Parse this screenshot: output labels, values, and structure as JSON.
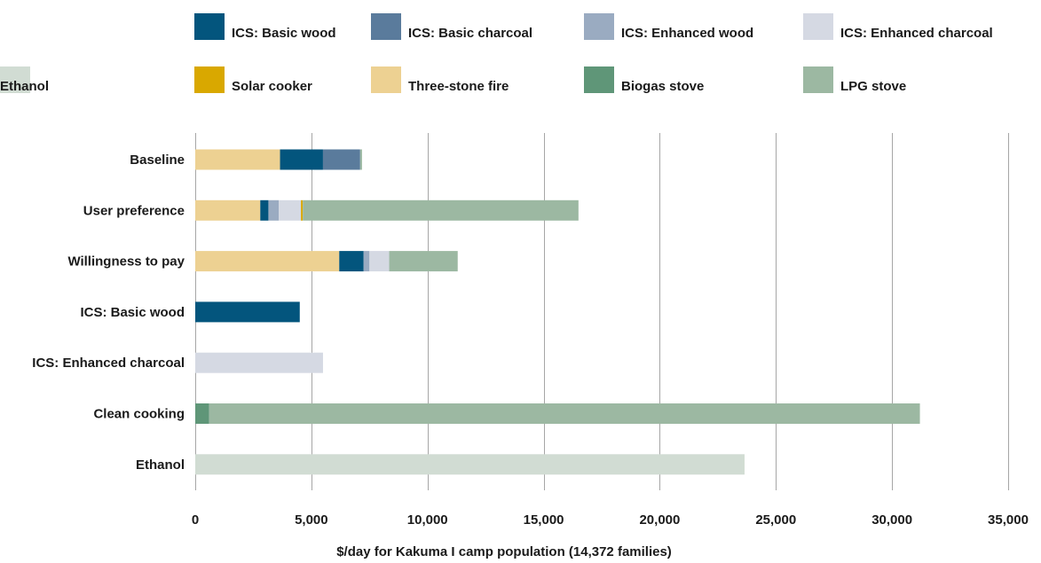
{
  "chart_data": {
    "type": "bar",
    "orientation": "horizontal",
    "stacked": true,
    "xlabel": "$/day for Kakuma I camp population (14,372 families)",
    "xlim": [
      0,
      35000
    ],
    "xticks": [
      0,
      5000,
      10000,
      15000,
      20000,
      25000,
      30000,
      35000
    ],
    "xtick_labels": [
      "0",
      "5,000",
      "10,000",
      "15,000",
      "20,000",
      "25,000",
      "30,000",
      "35,000"
    ],
    "grid": "vertical",
    "legend_position": "top",
    "legend_order": [
      "ICS: Basic wood",
      "ICS: Basic charcoal",
      "ICS: Enhanced wood",
      "ICS: Enhanced charcoal",
      "Solar cooker",
      "Three-stone fire",
      "Biogas stove",
      "LPG stove",
      "Ethanol"
    ],
    "categories": [
      "Baseline",
      "User preference",
      "Willingness to pay",
      "ICS: Basic wood",
      "ICS: Enhanced charcoal",
      "Clean cooking",
      "Ethanol"
    ],
    "series": [
      {
        "name": "Three-stone fire",
        "color": "#EDD192",
        "values": [
          3650,
          2800,
          6200,
          0,
          0,
          0,
          0
        ]
      },
      {
        "name": "ICS: Basic wood",
        "color": "#03557D",
        "values": [
          1850,
          350,
          1050,
          4500,
          0,
          0,
          0
        ]
      },
      {
        "name": "ICS: Basic charcoal",
        "color": "#5A7B9C",
        "values": [
          1600,
          0,
          0,
          0,
          0,
          0,
          0
        ]
      },
      {
        "name": "ICS: Enhanced wood",
        "color": "#9AABC1",
        "values": [
          0,
          450,
          250,
          0,
          0,
          0,
          0
        ]
      },
      {
        "name": "ICS: Enhanced charcoal",
        "color": "#D5D9E3",
        "values": [
          0,
          950,
          850,
          0,
          5500,
          0,
          0
        ]
      },
      {
        "name": "Solar cooker",
        "color": "#D9A800",
        "values": [
          0,
          80,
          0,
          0,
          0,
          0,
          0
        ]
      },
      {
        "name": "Biogas stove",
        "color": "#5F9678",
        "values": [
          0,
          0,
          0,
          0,
          0,
          600,
          0
        ]
      },
      {
        "name": "LPG stove",
        "color": "#9CB8A2",
        "values": [
          80,
          11870,
          2950,
          0,
          0,
          30600,
          0
        ]
      },
      {
        "name": "Ethanol",
        "color": "#D1DCD3",
        "values": [
          0,
          0,
          0,
          0,
          0,
          0,
          23650
        ]
      }
    ]
  }
}
